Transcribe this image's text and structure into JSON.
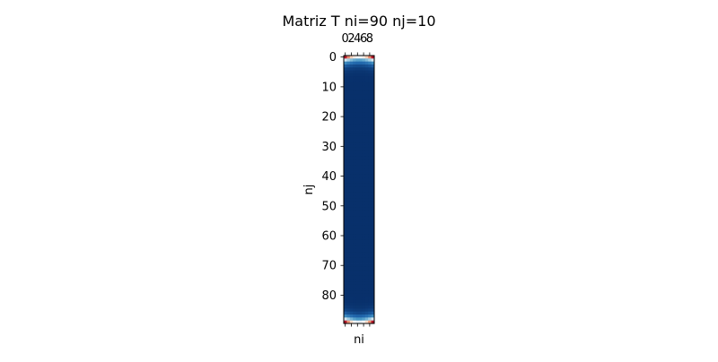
{
  "chart_data": {
    "type": "heatmap",
    "title": "Matriz T ni=90  nj=10",
    "xlabel": "ni",
    "ylabel": "nj",
    "rows": 90,
    "cols": 10,
    "x_ticks": [
      0,
      2,
      4,
      6,
      8
    ],
    "x_tick_labels": [
      "0",
      "2",
      "4",
      "6",
      "8"
    ],
    "y_ticks": [
      0,
      10,
      20,
      30,
      40,
      50,
      60,
      70,
      80
    ],
    "y_tick_labels": [
      "0",
      "10",
      "20",
      "30",
      "40",
      "50",
      "60",
      "70",
      "80"
    ],
    "x_tick_position": "top",
    "colormap": "RdBu_r",
    "colormap_stops": [
      "#08306b",
      "#2166ac",
      "#4393c3",
      "#92c5de",
      "#d1e5f0",
      "#f7f7f7",
      "#fddbc7",
      "#f4a582",
      "#d6604d",
      "#b2182b"
    ],
    "value_range": [
      0,
      1
    ],
    "boundary": {
      "top_row_edge_value": 1.0,
      "top_row_center_value": 0.55,
      "bottom_row_edge_value": 1.0,
      "bottom_row_center_value": 0.5,
      "interior_value": 0.0,
      "decay_per_row": 0.45
    },
    "grid": false,
    "legend": "none"
  }
}
